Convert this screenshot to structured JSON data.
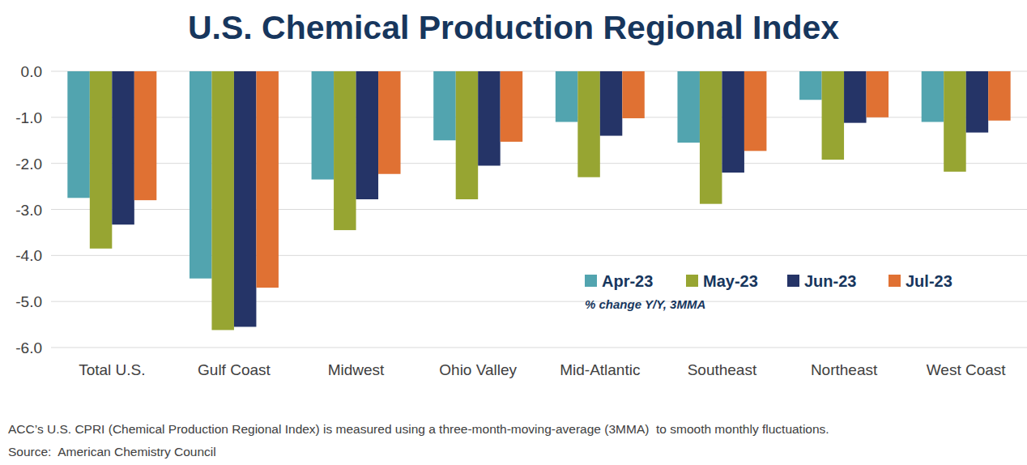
{
  "chart_data": {
    "type": "bar",
    "title": "U.S. Chemical Production Regional Index",
    "categories": [
      "Total U.S.",
      "Gulf Coast",
      "Midwest",
      "Ohio Valley",
      "Mid-Atlantic",
      "Southeast",
      "Northeast",
      "West Coast"
    ],
    "series": [
      {
        "name": "Apr-23",
        "color": "#52a4af",
        "values": [
          -2.75,
          -4.5,
          -2.35,
          -1.5,
          -1.1,
          -1.55,
          -0.62,
          -1.1
        ]
      },
      {
        "name": "May-23",
        "color": "#97a532",
        "values": [
          -3.85,
          -5.62,
          -3.45,
          -2.78,
          -2.3,
          -2.88,
          -1.92,
          -2.18
        ]
      },
      {
        "name": "Jun-23",
        "color": "#253467",
        "values": [
          -3.33,
          -5.55,
          -2.78,
          -2.05,
          -1.4,
          -2.2,
          -1.12,
          -1.33
        ]
      },
      {
        "name": "Jul-23",
        "color": "#e07133",
        "values": [
          -2.8,
          -4.7,
          -2.23,
          -1.53,
          -1.02,
          -1.73,
          -1.0,
          -1.07
        ]
      }
    ],
    "ylim": [
      -6,
      0
    ],
    "yticks": [
      {
        "value": 0,
        "label": "0.0"
      },
      {
        "value": -1,
        "label": "-1.0"
      },
      {
        "value": -2,
        "label": "-2.0"
      },
      {
        "value": -3,
        "label": "-3.0"
      },
      {
        "value": -4,
        "label": "-4.0"
      },
      {
        "value": -5,
        "label": "-5.0"
      },
      {
        "value": -6,
        "label": "-6.0"
      }
    ],
    "grid": true,
    "legend": "lower-right",
    "annotations": [
      "% change Y/Y, 3MMA"
    ],
    "note": "ACC’s U.S. CPRI (Chemical Production Regional Index) is measured using a three-month-moving-average (3MMA)  to smooth monthly fluctuations.",
    "source": "Source:  American Chemistry Council"
  }
}
